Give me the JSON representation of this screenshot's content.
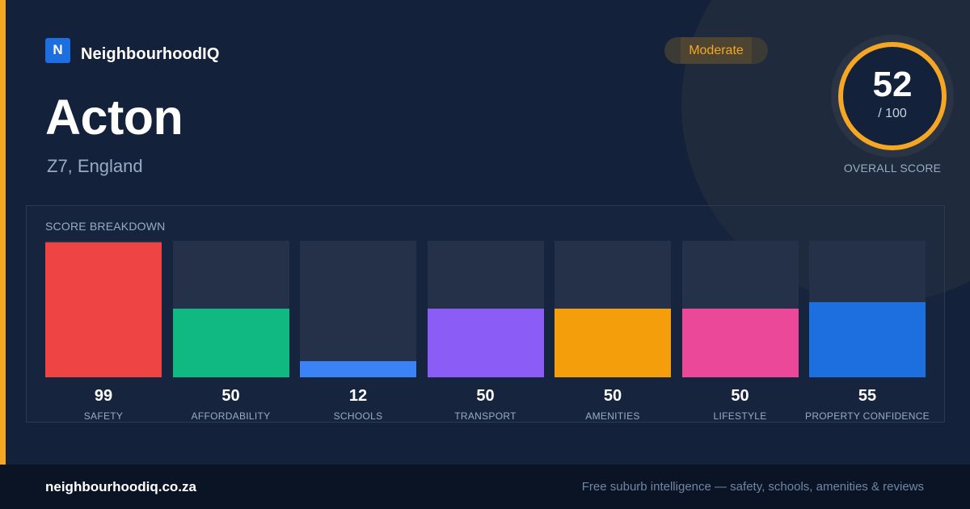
{
  "brand": {
    "logo_letter": "N",
    "name": "NeighbourhoodIQ"
  },
  "location": {
    "name": "Acton",
    "region": "Z7, England"
  },
  "badge": {
    "label": "Moderate"
  },
  "overall": {
    "score": "52",
    "max": "/ 100",
    "label": "OVERALL SCORE",
    "fraction": 0.52
  },
  "breakdown": {
    "title": "SCORE BREAKDOWN",
    "items": [
      {
        "label": "SAFETY",
        "value": "99",
        "score": 99,
        "color": "#ef4444"
      },
      {
        "label": "AFFORDABILITY",
        "value": "50",
        "score": 50,
        "color": "#10b981"
      },
      {
        "label": "SCHOOLS",
        "value": "12",
        "score": 12,
        "color": "#3b82f6"
      },
      {
        "label": "TRANSPORT",
        "value": "50",
        "score": 50,
        "color": "#8b5cf6"
      },
      {
        "label": "AMENITIES",
        "value": "50",
        "score": 50,
        "color": "#f59e0b"
      },
      {
        "label": "LIFESTYLE",
        "value": "50",
        "score": 50,
        "color": "#ec4899"
      },
      {
        "label": "PROPERTY CONFIDENCE",
        "value": "55",
        "score": 55,
        "color": "#1d6fe0"
      }
    ]
  },
  "colors": {
    "accent": "#f5a623",
    "background": "#13213a",
    "footer": "#0b1424"
  },
  "footer": {
    "url": "neighbourhoodiq.co.za",
    "tagline": "Free suburb intelligence — safety, schools, amenities & reviews"
  }
}
